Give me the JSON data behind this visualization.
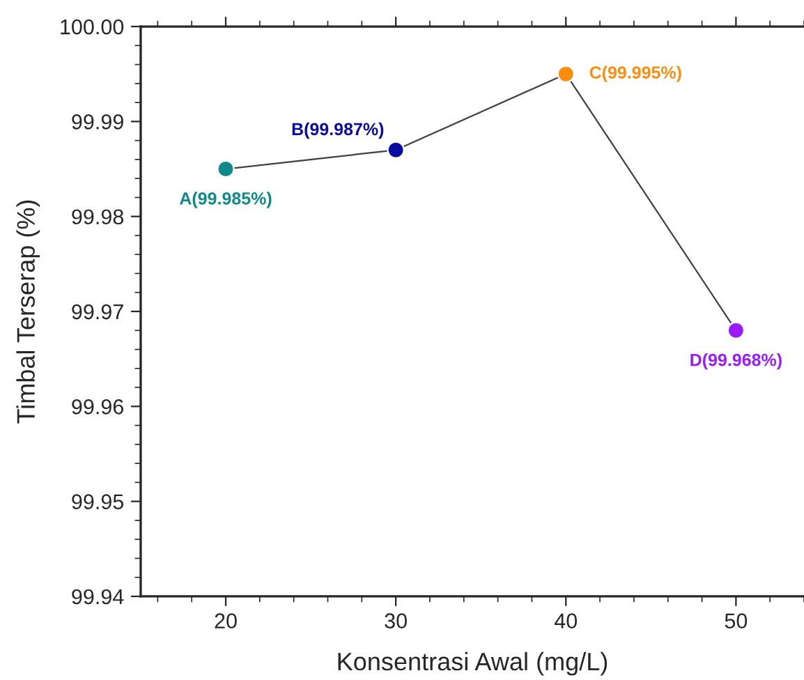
{
  "chart_data": {
    "type": "line",
    "xlabel": "Konsentrasi Awal (mg/L)",
    "ylabel": "Timbal Terserap (%)",
    "x": [
      20,
      30,
      40,
      50
    ],
    "series": [
      {
        "color": "#404040",
        "colors": [
          "#0f8a8a",
          "#0a0aa0",
          "#ff8c0a",
          "#9b1aff"
        ],
        "values": [
          99.985,
          99.987,
          99.995,
          99.968
        ],
        "value_labels": [
          "A(99.985%)",
          "B(99.987%)",
          "C(99.995%)",
          "D(99.968%)"
        ]
      }
    ],
    "xlim": [
      15,
      54
    ],
    "xticks": [
      20,
      30,
      40,
      50
    ],
    "ylim": [
      99.94,
      100.0
    ],
    "yticks": [
      {
        "value": 99.94,
        "label": "99.94"
      },
      {
        "value": 99.95,
        "label": "99.95"
      },
      {
        "value": 99.96,
        "label": "99.96"
      },
      {
        "value": 99.97,
        "label": "99.97"
      },
      {
        "value": 99.98,
        "label": "99.98"
      },
      {
        "value": 99.99,
        "label": "99.99"
      },
      {
        "value": 100.0,
        "label": "100.00"
      }
    ],
    "marker": "circle",
    "grid": false,
    "legend": false
  }
}
